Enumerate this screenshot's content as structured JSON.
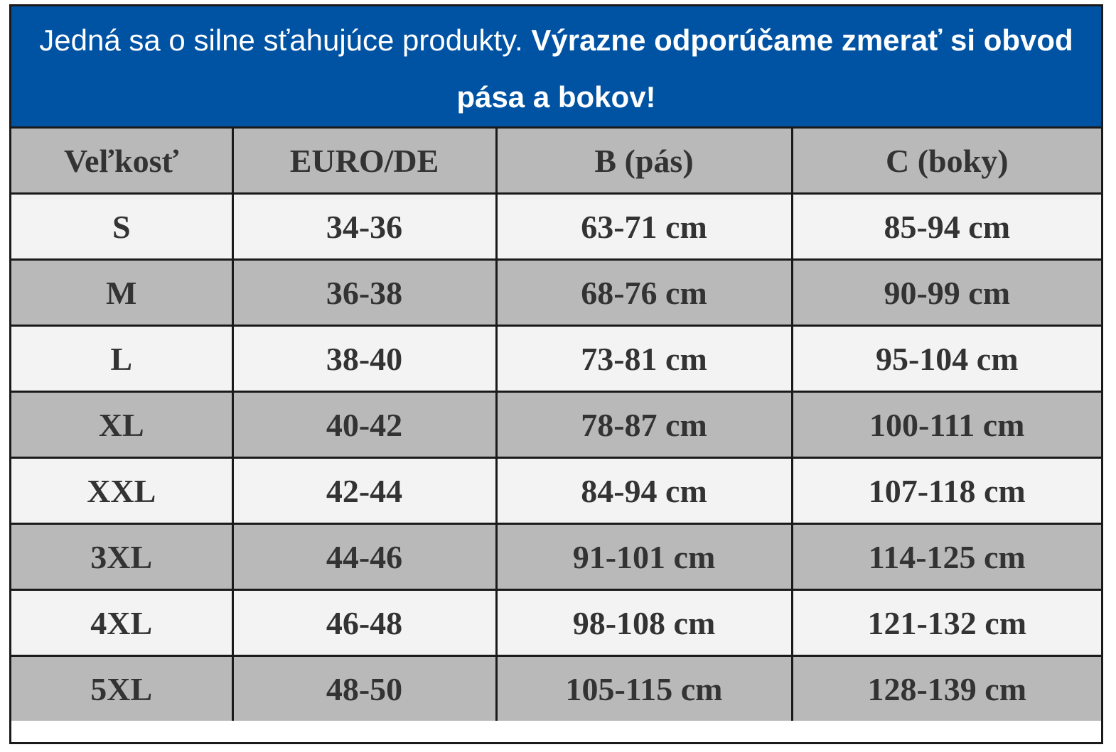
{
  "header": {
    "text": "Jedná sa o silne sťahujúce produkty.",
    "emphasis": "Výrazne odporúčame zmerať si obvod pása a bokov!"
  },
  "table": {
    "columns": [
      "Veľkosť",
      "EURO/DE",
      "B (pás)",
      "C (boky)"
    ],
    "rows": [
      [
        "S",
        "34-36",
        "63-71 cm",
        "85-94 cm"
      ],
      [
        "M",
        "36-38",
        "68-76 cm",
        "90-99 cm"
      ],
      [
        "L",
        "38-40",
        "73-81 cm",
        "95-104 cm"
      ],
      [
        "XL",
        "40-42",
        "78-87 cm",
        "100-111 cm"
      ],
      [
        "XXL",
        "42-44",
        "84-94 cm",
        "107-118 cm"
      ],
      [
        "3XL",
        "44-46",
        "91-101 cm",
        "114-125 cm"
      ],
      [
        "4XL",
        "46-48",
        "98-108 cm",
        "121-132 cm"
      ],
      [
        "5XL",
        "48-50",
        "105-115 cm",
        "128-139 cm"
      ]
    ]
  }
}
